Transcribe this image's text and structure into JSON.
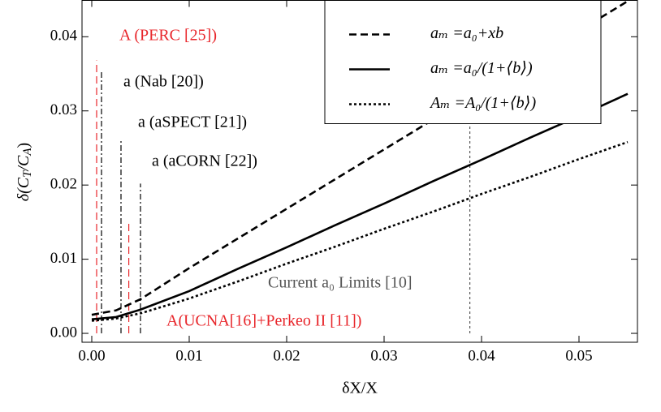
{
  "chart_data": {
    "type": "line",
    "x_label": "δX/X",
    "y_label": [
      "δ(C",
      "T",
      "/C",
      "A",
      ")"
    ],
    "x": [
      0,
      0.0025,
      0.005,
      0.01,
      0.015,
      0.02,
      0.025,
      0.03,
      0.035,
      0.04,
      0.045,
      0.05,
      0.055
    ],
    "series": [
      {
        "name": "aₘ =a₀+xb",
        "color": "#000000",
        "dash": "dashed",
        "values": [
          0.0025,
          0.0031,
          0.0046,
          0.0088,
          0.0128,
          0.0168,
          0.0208,
          0.0248,
          0.0288,
          0.0328,
          0.0368,
          0.0408,
          0.0448
        ]
      },
      {
        "name": "aₘ =a₀/(1+⟨b⟩)",
        "color": "#000000",
        "dash": "solid",
        "values": [
          0.0019,
          0.0022,
          0.0032,
          0.0057,
          0.0087,
          0.0116,
          0.0146,
          0.0175,
          0.0205,
          0.0234,
          0.0264,
          0.0293,
          0.0323
        ]
      },
      {
        "name": "Aₘ =A₀/(1+⟨b⟩)",
        "color": "#000000",
        "dash": "dotted",
        "values": [
          0.0017,
          0.002,
          0.0027,
          0.0047,
          0.007,
          0.0094,
          0.0117,
          0.0141,
          0.0164,
          0.0188,
          0.0211,
          0.0235,
          0.0258
        ]
      }
    ],
    "vlines": [
      {
        "x": 0.0005,
        "top": 0.0368,
        "color": "#e8262b",
        "dash": "dashed",
        "label": "A (PERC [25])"
      },
      {
        "x": 0.001,
        "top": 0.0353,
        "color": "#000000",
        "dash": "dashdot",
        "label": "a (Nab [20])"
      },
      {
        "x": 0.003,
        "top": 0.0262,
        "color": "#000000",
        "dash": "dashdot",
        "label": "a (aSPECT [21])"
      },
      {
        "x": 0.005,
        "top": 0.0202,
        "color": "#000000",
        "dash": "dashdot",
        "label": "a (aCORN [22])"
      },
      {
        "x": 0.0038,
        "top": 0.0149,
        "color": "#e8262b",
        "dash": "dashed",
        "label": "A(UCNA[16]+Perkeo II [11])"
      },
      {
        "x": 0.0388,
        "top": 0.028,
        "color": "#555555",
        "dash": "dotted",
        "label": "Current a₀ Limits [10]"
      }
    ],
    "xlim": [
      -0.001,
      0.056
    ],
    "ylim": [
      -0.0012,
      0.0449
    ],
    "xticks": [
      {
        "value": 0,
        "label": "0.00"
      },
      {
        "value": 0.01,
        "label": "0.01"
      },
      {
        "value": 0.02,
        "label": "0.02"
      },
      {
        "value": 0.03,
        "label": "0.03"
      },
      {
        "value": 0.04,
        "label": "0.04"
      },
      {
        "value": 0.05,
        "label": "0.05"
      }
    ],
    "yticks": [
      {
        "value": 0,
        "label": "0.00"
      },
      {
        "value": 0.01,
        "label": "0.01"
      },
      {
        "value": 0.02,
        "label": "0.02"
      },
      {
        "value": 0.03,
        "label": "0.03"
      },
      {
        "value": 0.04,
        "label": "0.04"
      }
    ],
    "legend": "top-right"
  }
}
